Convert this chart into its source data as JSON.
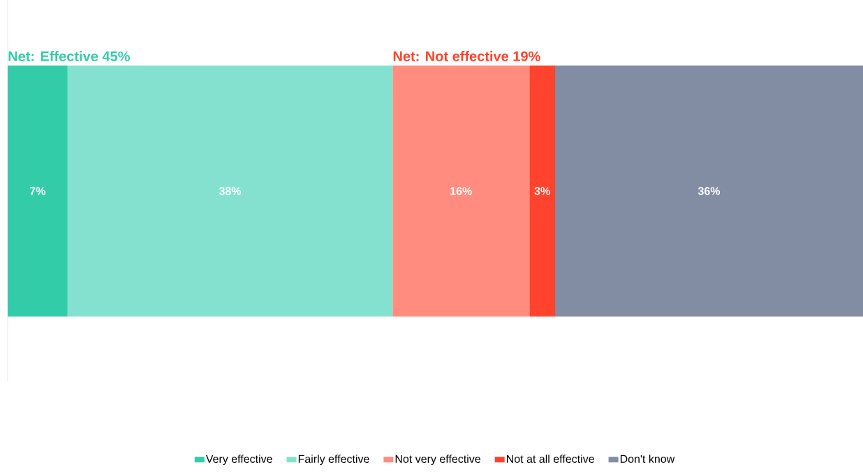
{
  "chart_data": {
    "type": "bar",
    "orientation": "horizontal",
    "stacked": true,
    "categories": [
      null
    ],
    "xlim": [
      0,
      100
    ],
    "legend": "bottom",
    "tick_labels": false,
    "data_labels": true,
    "annotations": [
      "Net: Effective 45%",
      "Net: Not effective 19%"
    ],
    "series": [
      {
        "name": "Very effective",
        "color": "#33cca8",
        "values": [
          7
        ],
        "value_labels": [
          "7%"
        ]
      },
      {
        "name": "Fairly effective",
        "color": "#84e1cf",
        "values": [
          38
        ],
        "value_labels": [
          "38%"
        ]
      },
      {
        "name": "Not very effective",
        "color": "#ff8c7e",
        "values": [
          16
        ],
        "value_labels": [
          "16%"
        ]
      },
      {
        "name": "Not at all effective",
        "color": "#ff432c",
        "values": [
          3
        ],
        "value_labels": [
          "3%"
        ]
      },
      {
        "name": "Don't know",
        "color": "#828ca3",
        "values": [
          36
        ],
        "value_labels": [
          "36%"
        ]
      }
    ]
  }
}
